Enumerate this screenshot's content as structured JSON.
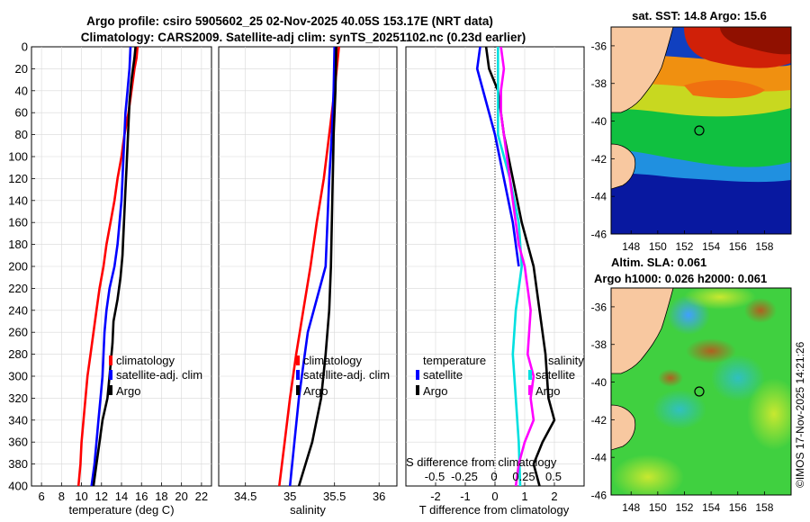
{
  "titles": {
    "line1": "Argo profile: csiro 5905602_25 02-Nov-2025 40.05S 153.17E (NRT data)",
    "line2": "Climatology: CARS2009. Satellite-adj clim: synTS_20251102.nc (0.23d earlier)"
  },
  "colors": {
    "climatology": "#ff0000",
    "satellite": "#0000ff",
    "argo": "#000000",
    "sat_salinity": "#00e0e0",
    "argo_salinity_diff": "#ff00ff",
    "land": "#f8c8a0"
  },
  "chart_data": [
    {
      "id": "temperature",
      "type": "line",
      "xlabel": "temperature (deg C)",
      "ylabel": "",
      "xlim": [
        5,
        23
      ],
      "ylim": [
        400,
        0
      ],
      "xticks": [
        6,
        8,
        10,
        12,
        14,
        16,
        18,
        20,
        22
      ],
      "yticks": [
        0,
        20,
        40,
        60,
        80,
        100,
        120,
        140,
        160,
        180,
        200,
        220,
        240,
        260,
        280,
        300,
        320,
        340,
        360,
        380,
        400
      ],
      "legend": [
        "climatology",
        "satellite-adj. clim",
        "Argo"
      ],
      "series": [
        {
          "name": "climatology",
          "color": "climatology",
          "points": [
            [
              15.6,
              0
            ],
            [
              15.5,
              10
            ],
            [
              15.3,
              20
            ],
            [
              15.0,
              40
            ],
            [
              14.7,
              60
            ],
            [
              14.3,
              80
            ],
            [
              14.0,
              100
            ],
            [
              13.6,
              120
            ],
            [
              13.3,
              140
            ],
            [
              12.9,
              160
            ],
            [
              12.5,
              180
            ],
            [
              12.2,
              200
            ],
            [
              11.8,
              220
            ],
            [
              11.5,
              240
            ],
            [
              11.2,
              260
            ],
            [
              10.9,
              280
            ],
            [
              10.6,
              300
            ],
            [
              10.4,
              320
            ],
            [
              10.2,
              340
            ],
            [
              10.0,
              360
            ],
            [
              9.9,
              380
            ],
            [
              9.7,
              400
            ]
          ]
        },
        {
          "name": "satellite-adj. clim",
          "color": "satellite",
          "points": [
            [
              14.9,
              0
            ],
            [
              14.8,
              20
            ],
            [
              14.6,
              40
            ],
            [
              14.4,
              60
            ],
            [
              14.3,
              80
            ],
            [
              14.2,
              100
            ],
            [
              14.1,
              120
            ],
            [
              14.0,
              140
            ],
            [
              13.8,
              160
            ],
            [
              13.6,
              180
            ],
            [
              13.3,
              200
            ],
            [
              12.8,
              220
            ],
            [
              12.5,
              240
            ],
            [
              12.3,
              260
            ],
            [
              12.2,
              280
            ],
            [
              12.1,
              300
            ],
            [
              11.9,
              320
            ],
            [
              11.7,
              340
            ],
            [
              11.5,
              360
            ],
            [
              11.3,
              380
            ],
            [
              11.0,
              400
            ]
          ]
        },
        {
          "name": "Argo",
          "color": "argo",
          "points": [
            [
              15.4,
              0
            ],
            [
              15.3,
              10
            ],
            [
              15.0,
              30
            ],
            [
              14.8,
              50
            ],
            [
              14.7,
              70
            ],
            [
              14.6,
              90
            ],
            [
              14.5,
              110
            ],
            [
              14.4,
              130
            ],
            [
              14.3,
              150
            ],
            [
              14.2,
              170
            ],
            [
              14.1,
              190
            ],
            [
              13.9,
              210
            ],
            [
              13.6,
              230
            ],
            [
              13.2,
              250
            ],
            [
              13.1,
              270
            ],
            [
              13.0,
              280
            ],
            [
              12.8,
              300
            ],
            [
              12.6,
              320
            ],
            [
              12.1,
              340
            ],
            [
              11.8,
              360
            ],
            [
              11.5,
              380
            ],
            [
              11.2,
              400
            ]
          ]
        }
      ]
    },
    {
      "id": "salinity",
      "type": "line",
      "xlabel": "salinity",
      "ylabel": "",
      "xlim": [
        34.2,
        36.2
      ],
      "ylim": [
        400,
        0
      ],
      "xticks": [
        34.5,
        35,
        35.5,
        36
      ],
      "xticklabels": [
        "34.5",
        "35",
        "35.5",
        "36"
      ],
      "legend": [
        "climatology",
        "satellite-adj. clim",
        "Argo"
      ],
      "series": [
        {
          "name": "climatology",
          "color": "climatology",
          "points": [
            [
              35.55,
              0
            ],
            [
              35.5,
              40
            ],
            [
              35.44,
              80
            ],
            [
              35.38,
              120
            ],
            [
              35.3,
              160
            ],
            [
              35.23,
              200
            ],
            [
              35.15,
              240
            ],
            [
              35.07,
              280
            ],
            [
              35.0,
              320
            ],
            [
              34.94,
              360
            ],
            [
              34.88,
              400
            ]
          ]
        },
        {
          "name": "satellite-adj. clim",
          "color": "satellite",
          "points": [
            [
              35.5,
              0
            ],
            [
              35.49,
              40
            ],
            [
              35.47,
              80
            ],
            [
              35.44,
              120
            ],
            [
              35.42,
              160
            ],
            [
              35.4,
              200
            ],
            [
              35.3,
              230
            ],
            [
              35.2,
              260
            ],
            [
              35.15,
              290
            ],
            [
              35.1,
              320
            ],
            [
              35.05,
              360
            ],
            [
              35.0,
              400
            ]
          ]
        },
        {
          "name": "Argo",
          "color": "argo",
          "points": [
            [
              35.52,
              0
            ],
            [
              35.51,
              40
            ],
            [
              35.49,
              80
            ],
            [
              35.48,
              120
            ],
            [
              35.47,
              160
            ],
            [
              35.46,
              200
            ],
            [
              35.44,
              240
            ],
            [
              35.4,
              280
            ],
            [
              35.35,
              320
            ],
            [
              35.25,
              360
            ],
            [
              35.1,
              400
            ]
          ]
        }
      ]
    },
    {
      "id": "difference",
      "type": "line",
      "xlabel": "T difference from climatology",
      "ylabel": "",
      "xlim": [
        -3,
        3
      ],
      "ylim": [
        400,
        0
      ],
      "xticks": [
        -2,
        -1,
        0,
        1,
        2
      ],
      "xticklabels": [
        "-2",
        "-1",
        "0",
        "1",
        "2"
      ],
      "secondary_axis_label": "S difference from climatology",
      "secondary_ticks": [
        "-0.5",
        "-0.25",
        "0",
        "0.25",
        "0.5"
      ],
      "legend": {
        "temperature": "temperature",
        "salinity": "salinity",
        "left": [
          "satellite",
          "Argo"
        ],
        "right": [
          "satellite",
          "Argo"
        ]
      },
      "series": [
        {
          "name": "T satellite",
          "color": "satellite",
          "points": [
            [
              -0.5,
              0
            ],
            [
              -0.6,
              20
            ],
            [
              -0.3,
              50
            ],
            [
              0.0,
              80
            ],
            [
              0.3,
              120
            ],
            [
              0.6,
              160
            ],
            [
              0.8,
              200
            ]
          ]
        },
        {
          "name": "T Argo",
          "color": "argo",
          "points": [
            [
              -0.3,
              0
            ],
            [
              -0.2,
              20
            ],
            [
              0.1,
              40
            ],
            [
              0.3,
              80
            ],
            [
              0.6,
              120
            ],
            [
              0.9,
              160
            ],
            [
              1.3,
              200
            ],
            [
              1.5,
              240
            ],
            [
              1.7,
              280
            ],
            [
              1.8,
              320
            ],
            [
              2.0,
              340
            ],
            [
              1.6,
              360
            ],
            [
              1.3,
              380
            ],
            [
              1.5,
              400
            ]
          ]
        },
        {
          "name": "S satellite",
          "color": "sat_salinity",
          "points": [
            [
              0.1,
              0
            ],
            [
              0.1,
              40
            ],
            [
              0.1,
              80
            ],
            [
              0.5,
              120
            ],
            [
              0.8,
              160
            ],
            [
              0.9,
              200
            ],
            [
              0.7,
              240
            ],
            [
              0.6,
              280
            ],
            [
              0.7,
              320
            ],
            [
              0.8,
              360
            ],
            [
              0.85,
              400
            ]
          ]
        },
        {
          "name": "S Argo",
          "color": "argo_salinity_diff",
          "points": [
            [
              0.2,
              0
            ],
            [
              0.3,
              20
            ],
            [
              0.2,
              40
            ],
            [
              0.2,
              60
            ],
            [
              0.4,
              100
            ],
            [
              0.6,
              140
            ],
            [
              0.8,
              180
            ],
            [
              1.0,
              200
            ],
            [
              1.2,
              240
            ],
            [
              1.1,
              280
            ],
            [
              1.3,
              300
            ],
            [
              1.2,
              320
            ],
            [
              1.3,
              340
            ],
            [
              1.0,
              360
            ],
            [
              0.8,
              380
            ],
            [
              0.7,
              400
            ]
          ]
        }
      ]
    },
    {
      "id": "sst_map",
      "type": "heatmap",
      "title": "sat. SST: 14.8 Argo: 15.6",
      "xticks": [
        148,
        150,
        152,
        154,
        156,
        158
      ],
      "yticks": [
        -36,
        -38,
        -40,
        -42,
        -44,
        -46
      ],
      "marker": {
        "lon": 153.17,
        "lat": -40.05
      }
    },
    {
      "id": "sla_map",
      "type": "heatmap",
      "title_line1": "Altim. SLA: 0.061",
      "title_line2": "Argo h1000: 0.026 h2000: 0.061",
      "xticks": [
        148,
        150,
        152,
        154,
        156,
        158
      ],
      "yticks": [
        -36,
        -38,
        -40,
        -42,
        -44,
        -46
      ],
      "marker": {
        "lon": 153.17,
        "lat": -40.05
      }
    }
  ],
  "watermark": "©IMOS 17-Nov-2025 14:21:26"
}
